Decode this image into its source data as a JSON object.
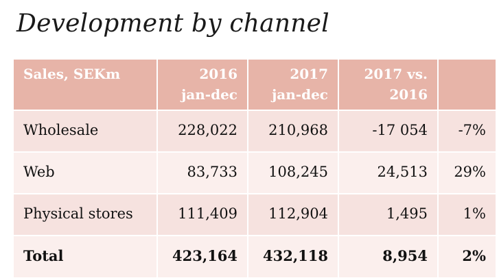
{
  "title": "Development by channel",
  "chart_data": {
    "type": "table",
    "title": "Development by channel",
    "columns": [
      "Sales, SEKm",
      "2016 jan-dec",
      "2017 jan-dec",
      "2017 vs. 2016",
      ""
    ],
    "header": {
      "c0": {
        "l1": "Sales, SEKm",
        "l2": ""
      },
      "c1": {
        "l1": "2016",
        "l2": "jan-dec"
      },
      "c2": {
        "l1": "2017",
        "l2": "jan-dec"
      },
      "c3": {
        "l1": "2017 vs.",
        "l2": "2016"
      },
      "c4": {
        "l1": "",
        "l2": ""
      }
    },
    "rows": [
      {
        "label": "Wholesale",
        "v2016": "228,022",
        "v2017": "210,968",
        "diff": "-17 054",
        "pct": "-7%"
      },
      {
        "label": "Web",
        "v2016": "83,733",
        "v2017": "108,245",
        "diff": "24,513",
        "pct": "29%"
      },
      {
        "label": "Physical stores",
        "v2016": "111,409",
        "v2017": "112,904",
        "diff": "1,495",
        "pct": "1%"
      },
      {
        "label": "Total",
        "v2016": "423,164",
        "v2017": "432,118",
        "diff": "8,954",
        "pct": "2%"
      }
    ]
  },
  "colors": {
    "header_bg": "#e7b4a8",
    "header_text": "#ffffff",
    "row_odd_bg": "#f6e2df",
    "row_even_bg": "#fbefed",
    "text": "#111111"
  }
}
